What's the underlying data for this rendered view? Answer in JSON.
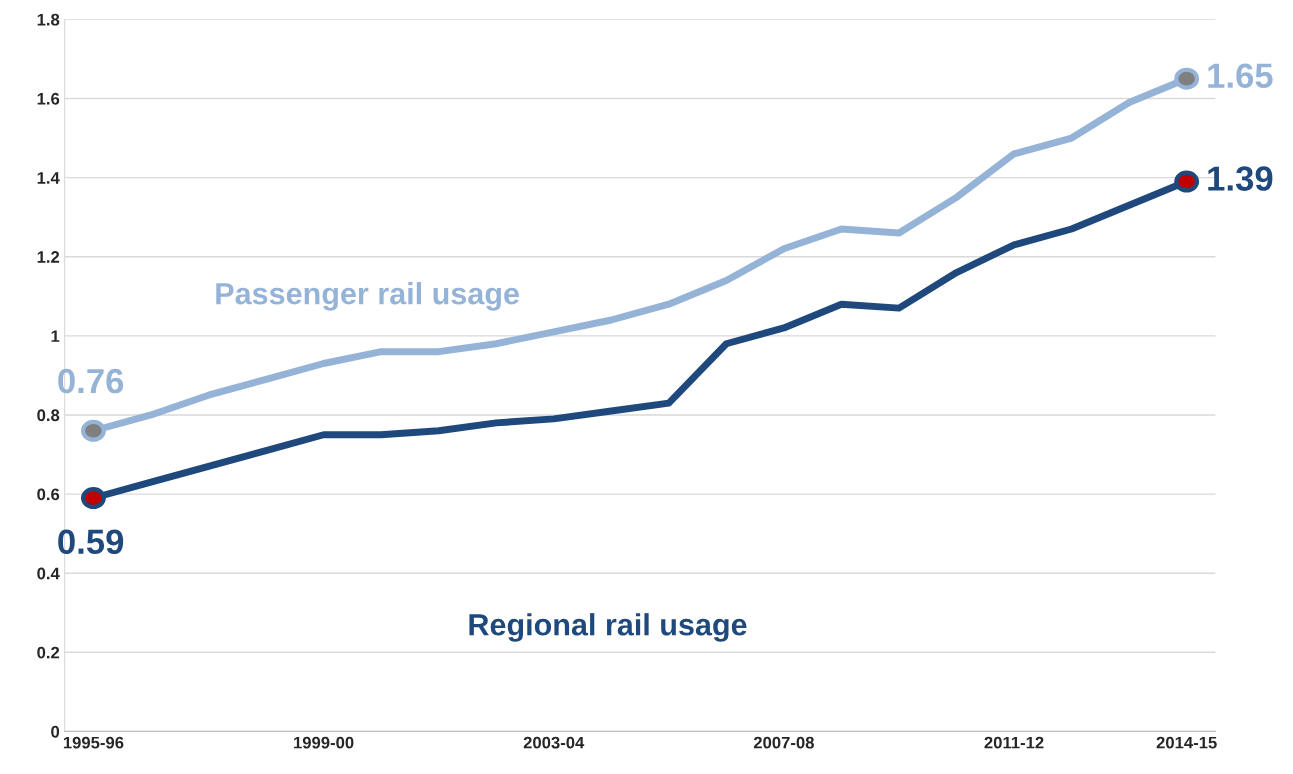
{
  "chart_data": {
    "type": "line",
    "categories": [
      "1995-96",
      null,
      null,
      null,
      "1999-00",
      null,
      null,
      null,
      "2003-04",
      null,
      null,
      null,
      "2007-08",
      null,
      null,
      null,
      "2011-12",
      null,
      null,
      "2014-15"
    ],
    "series": [
      {
        "name": "Passenger rail usage",
        "color": "#95b3d7",
        "values": [
          0.76,
          0.8,
          0.85,
          0.89,
          0.93,
          0.96,
          0.96,
          0.98,
          1.01,
          1.04,
          1.08,
          1.14,
          1.22,
          1.27,
          1.26,
          1.35,
          1.46,
          1.5,
          1.59,
          1.65
        ],
        "value_labels": [
          "0.76",
          null,
          null,
          null,
          null,
          null,
          null,
          null,
          null,
          null,
          null,
          null,
          null,
          null,
          null,
          null,
          null,
          null,
          null,
          "1.65"
        ]
      },
      {
        "name": "Regional rail usage",
        "color": "#1f497d",
        "values": [
          0.59,
          0.63,
          0.67,
          0.71,
          0.75,
          0.75,
          0.76,
          0.78,
          0.79,
          0.81,
          0.83,
          0.98,
          1.02,
          1.08,
          1.07,
          1.16,
          1.23,
          1.27,
          1.33,
          1.39
        ],
        "value_labels": [
          "0.59",
          null,
          null,
          null,
          null,
          null,
          null,
          null,
          null,
          null,
          null,
          null,
          null,
          null,
          null,
          null,
          null,
          null,
          null,
          "1.39"
        ]
      }
    ],
    "ylim": [
      0,
      1.8
    ],
    "yticks": [
      0,
      0.2,
      0.4,
      0.6,
      0.8,
      1,
      1.2,
      1.4,
      1.6,
      1.8
    ],
    "grid": "y",
    "line_style": "solid"
  }
}
